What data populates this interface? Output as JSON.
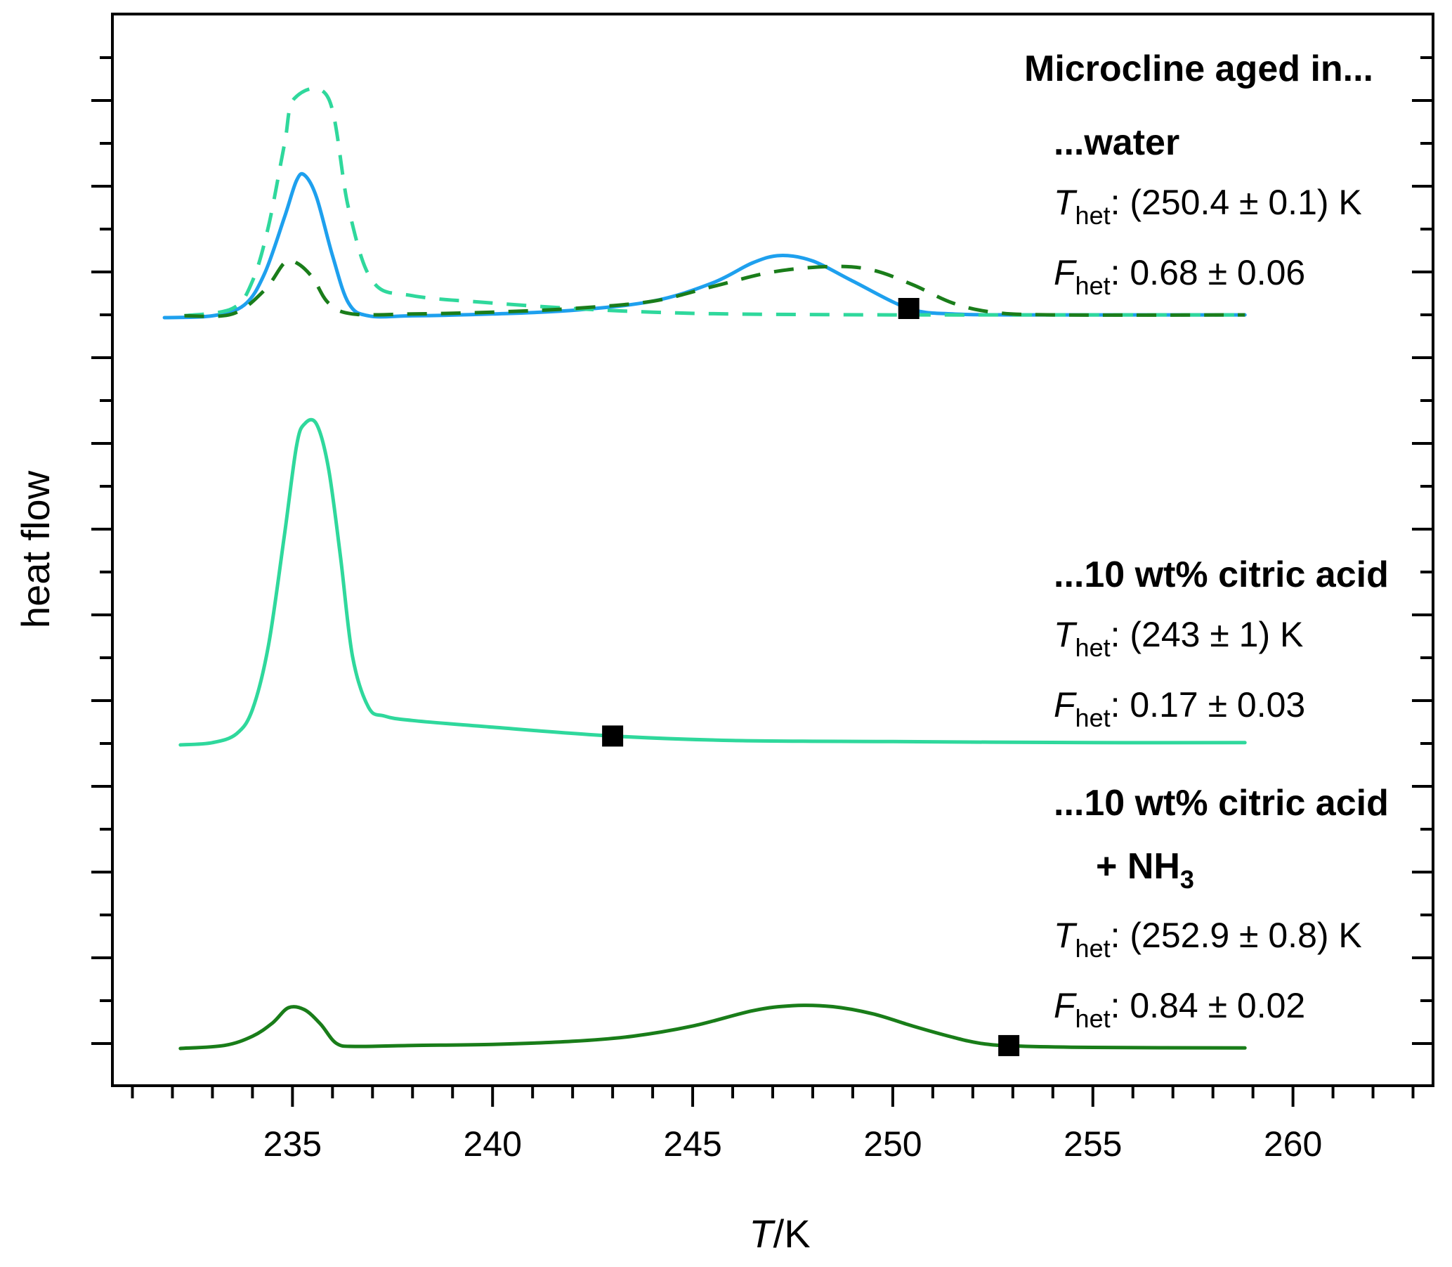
{
  "chart_data": {
    "type": "line",
    "xlabel": {
      "italic": "T",
      "rest": "/K"
    },
    "ylabel": "heat flow",
    "xlim": [
      230.5,
      263.5
    ],
    "x_ticks": [
      "235",
      "240",
      "245",
      "250",
      "255",
      "260"
    ],
    "y_ticks_labeled": false,
    "grid": false,
    "header": "Microcline aged in...",
    "panels": [
      {
        "title": "...water",
        "t_het": {
          "symbol": "T",
          "sub": "het",
          "text": ": (250.4 ± 0.1) K"
        },
        "f_het": {
          "symbol": "F",
          "sub": "het",
          "text": ": 0.68 ± 0.06"
        },
        "marker_x": 250.4,
        "series": [
          {
            "style": "solid",
            "color": "#1ea0ee",
            "x": [
              231.8,
              233,
              233.8,
              234.3,
              234.8,
              235.1,
              235.3,
              235.6,
              236.0,
              236.4,
              236.9,
              238,
              240,
              242,
              244,
              245.5,
              246.5,
              247.2,
              248,
              249,
              250.4,
              251.5,
              253,
              255,
              258.8
            ],
            "y": [
              0,
              0.01,
              0.07,
              0.24,
              0.55,
              0.75,
              0.78,
              0.66,
              0.34,
              0.08,
              0.01,
              0.01,
              0.02,
              0.04,
              0.09,
              0.19,
              0.3,
              0.34,
              0.31,
              0.2,
              0.05,
              0.02,
              0.015,
              0.015,
              0.015
            ]
          },
          {
            "style": "dashed",
            "color": "#2fd89c",
            "x": [
              232.3,
              233.5,
              234.0,
              234.4,
              234.8,
              235.05,
              235.9,
              236.4,
              237.0,
              238,
              240,
              242,
              244,
              246,
              250,
              255,
              258.8
            ],
            "y": [
              0.01,
              0.05,
              0.2,
              0.5,
              0.95,
              1.2,
              1.2,
              0.6,
              0.2,
              0.12,
              0.08,
              0.05,
              0.03,
              0.02,
              0.015,
              0.015,
              0.015
            ]
          },
          {
            "style": "dashed",
            "color": "#1a7d1a",
            "x": [
              232.3,
              233.5,
              234.3,
              234.8,
              235.1,
              235.5,
              235.9,
              236.5,
              238,
              240,
              242,
              244,
              245.5,
              247,
              248.5,
              249.5,
              250.5,
              251.5,
              252.5,
              254,
              258.8
            ],
            "y": [
              0.01,
              0.02,
              0.15,
              0.3,
              0.3,
              0.22,
              0.08,
              0.02,
              0.02,
              0.03,
              0.05,
              0.09,
              0.17,
              0.25,
              0.28,
              0.26,
              0.18,
              0.08,
              0.03,
              0.015,
              0.015
            ]
          }
        ]
      },
      {
        "title": "...10 wt% citric acid",
        "t_het": {
          "symbol": "T",
          "sub": "het",
          "text": ": (243 ± 1) K"
        },
        "f_het": {
          "symbol": "F",
          "sub": "het",
          "text": ": 0.17 ± 0.03"
        },
        "marker_x": 243,
        "series": [
          {
            "style": "solid",
            "color": "#2fd89c",
            "x": [
              232.2,
              233,
              233.6,
              234.0,
              234.4,
              234.8,
              235.1,
              235.3,
              235.6,
              235.9,
              236.2,
              236.5,
              236.9,
              237.3,
              238,
              240,
              243,
              246,
              250,
              255,
              258.8
            ],
            "y": [
              0,
              0.01,
              0.05,
              0.16,
              0.45,
              0.95,
              1.35,
              1.45,
              1.45,
              1.25,
              0.85,
              0.4,
              0.17,
              0.13,
              0.11,
              0.08,
              0.04,
              0.02,
              0.015,
              0.01,
              0.01
            ]
          }
        ]
      },
      {
        "title": "...10 wt% citric acid",
        "title2": {
          "text": "+ NH",
          "sub": "3"
        },
        "t_het": {
          "symbol": "T",
          "sub": "het",
          "text": ": (252.9 ± 0.8) K"
        },
        "f_het": {
          "symbol": "F",
          "sub": "het",
          "text": ": 0.84 ± 0.02"
        },
        "marker_x": 252.9,
        "series": [
          {
            "style": "solid",
            "color": "#197d19",
            "x": [
              232.2,
              233.3,
              234.0,
              234.5,
              234.9,
              235.3,
              235.7,
              236.1,
              236.6,
              238,
              240,
              242,
              243.5,
              245,
              246.5,
              247.5,
              248.5,
              249.5,
              250.5,
              251.5,
              252.2,
              253,
              255,
              258.8
            ],
            "y": [
              0,
              0.03,
              0.12,
              0.25,
              0.4,
              0.38,
              0.24,
              0.05,
              0.02,
              0.03,
              0.04,
              0.07,
              0.12,
              0.22,
              0.37,
              0.42,
              0.41,
              0.34,
              0.22,
              0.11,
              0.05,
              0.025,
              0.01,
              0.005
            ]
          }
        ]
      }
    ]
  }
}
